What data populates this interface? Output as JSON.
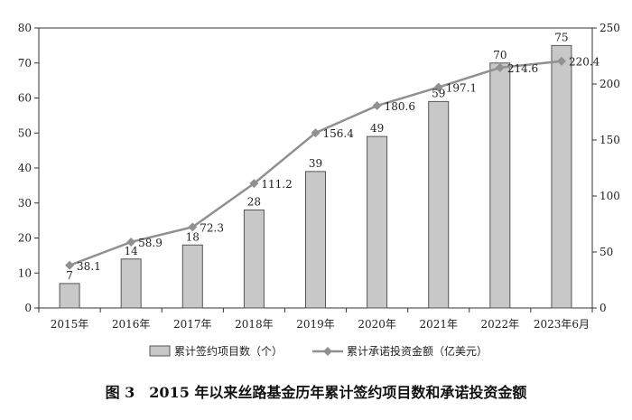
{
  "chart_data": {
    "type": "bar+line",
    "categories": [
      "2015年",
      "2016年",
      "2017年",
      "2018年",
      "2019年",
      "2020年",
      "2021年",
      "2022年",
      "2023年6月"
    ],
    "series": [
      {
        "name": "累计签约项目数（个）",
        "type": "bar",
        "axis": "left",
        "values": [
          7,
          14,
          18,
          28,
          39,
          49,
          59,
          70,
          75
        ],
        "color": "#c8c8c8"
      },
      {
        "name": "累计承诺投资金额（亿美元）",
        "type": "line",
        "axis": "right",
        "values": [
          38.1,
          58.9,
          72.3,
          111.2,
          156.4,
          180.6,
          197.1,
          214.6,
          220.4
        ],
        "color": "#909090"
      }
    ],
    "y_left": {
      "min": 0,
      "max": 80,
      "ticks": [
        0,
        10,
        20,
        30,
        40,
        50,
        60,
        70,
        80
      ]
    },
    "y_right": {
      "min": 0,
      "max": 250,
      "ticks": [
        0,
        50,
        100,
        150,
        200,
        250
      ]
    },
    "bar_labels": [
      "7",
      "14",
      "18",
      "28",
      "39",
      "49",
      "59",
      "70",
      "75"
    ],
    "line_labels": [
      "38.1",
      "58.9",
      "72.3",
      "111.2",
      "156.4",
      "180.6",
      "197.1",
      "214.6",
      "220.4"
    ],
    "legend": {
      "position": "bottom",
      "items": [
        "累计签约项目数（个）",
        "累计承诺投资金额（亿美元）"
      ]
    },
    "grid": false,
    "caption": "图 3　2015 年以来丝路基金历年累计签约项目数和承诺投资金额"
  }
}
